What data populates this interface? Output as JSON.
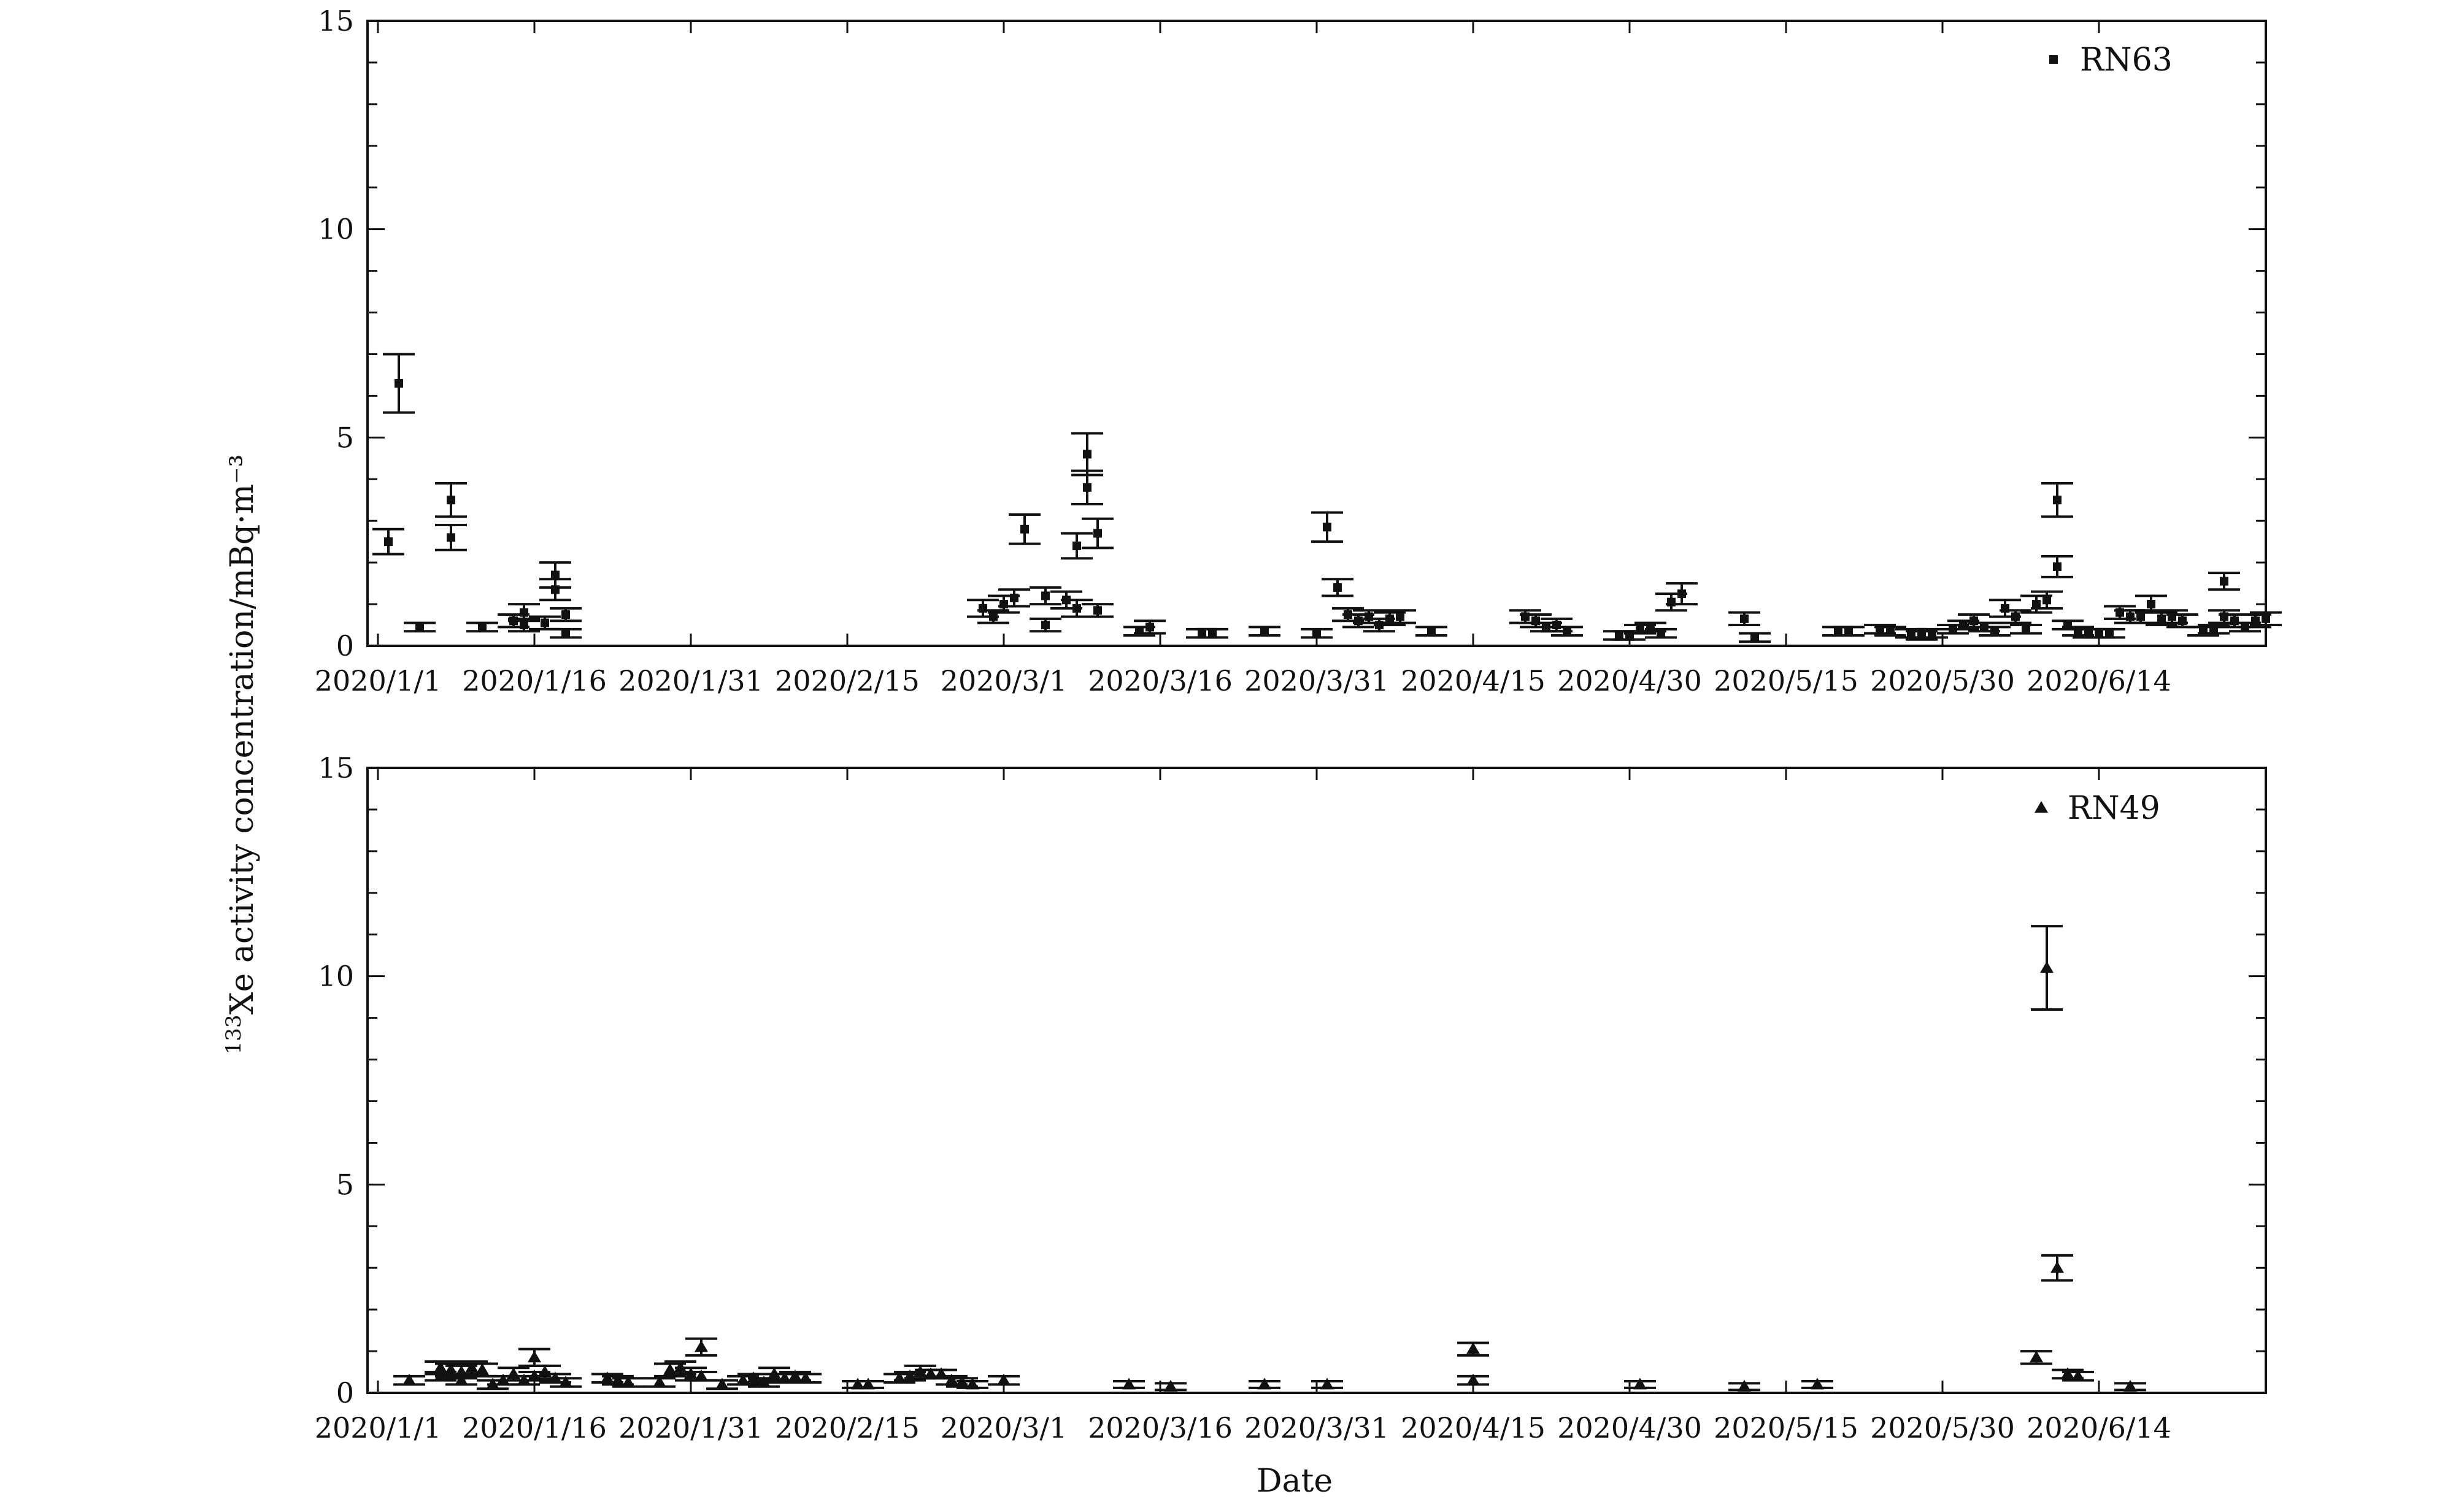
{
  "chart_data": [
    {
      "type": "scatter",
      "panel": "top",
      "legend": {
        "label": "RN63",
        "marker": "square",
        "placement": "top-right"
      },
      "xlabel": "",
      "ylabel_prefix": "133",
      "ylabel": "Xe activity concentration/mBq·m⁻³",
      "ylim": [
        0,
        15
      ],
      "y_ticks": [
        "0",
        "5",
        "10",
        "15"
      ],
      "x_ticks": [
        "2020/1/1",
        "2020/1/16",
        "2020/1/31",
        "2020/2/15",
        "2020/3/1",
        "2020/3/16",
        "2020/3/31",
        "2020/4/15",
        "2020/4/30",
        "2020/5/15",
        "2020/5/30",
        "2020/6/14"
      ],
      "xlim": [
        "2019/12/31",
        "2020/6/30"
      ],
      "series": [
        {
          "name": "RN63",
          "points": [
            {
              "date": "2020/1/2",
              "y": 2.5,
              "err": 0.3
            },
            {
              "date": "2020/1/3",
              "y": 6.3,
              "err": 0.7
            },
            {
              "date": "2020/1/5",
              "y": 0.45,
              "err": 0.1
            },
            {
              "date": "2020/1/8",
              "y": 2.6,
              "err": 0.3
            },
            {
              "date": "2020/1/8",
              "y": 3.5,
              "err": 0.4
            },
            {
              "date": "2020/1/11",
              "y": 0.45,
              "err": 0.1
            },
            {
              "date": "2020/1/14",
              "y": 0.6,
              "err": 0.15
            },
            {
              "date": "2020/1/15",
              "y": 0.8,
              "err": 0.2
            },
            {
              "date": "2020/1/15",
              "y": 0.5,
              "err": 0.15
            },
            {
              "date": "2020/1/17",
              "y": 0.55,
              "err": 0.15
            },
            {
              "date": "2020/1/18",
              "y": 1.35,
              "err": 0.25
            },
            {
              "date": "2020/1/18",
              "y": 1.7,
              "err": 0.3
            },
            {
              "date": "2020/1/19",
              "y": 0.75,
              "err": 0.15
            },
            {
              "date": "2020/1/19",
              "y": 0.3,
              "err": 0.1
            },
            {
              "date": "2020/2/28",
              "y": 0.9,
              "err": 0.2
            },
            {
              "date": "2020/2/29",
              "y": 0.7,
              "err": 0.15
            },
            {
              "date": "2020/3/1",
              "y": 1.0,
              "err": 0.2
            },
            {
              "date": "2020/3/2",
              "y": 1.15,
              "err": 0.2
            },
            {
              "date": "2020/3/3",
              "y": 2.8,
              "err": 0.35
            },
            {
              "date": "2020/3/5",
              "y": 1.2,
              "err": 0.2
            },
            {
              "date": "2020/3/5",
              "y": 0.5,
              "err": 0.15
            },
            {
              "date": "2020/3/7",
              "y": 1.1,
              "err": 0.2
            },
            {
              "date": "2020/3/8",
              "y": 0.9,
              "err": 0.2
            },
            {
              "date": "2020/3/8",
              "y": 2.4,
              "err": 0.3
            },
            {
              "date": "2020/3/9",
              "y": 4.6,
              "err": 0.5
            },
            {
              "date": "2020/3/9",
              "y": 3.8,
              "err": 0.4
            },
            {
              "date": "2020/3/10",
              "y": 0.85,
              "err": 0.15
            },
            {
              "date": "2020/3/10",
              "y": 2.7,
              "err": 0.35
            },
            {
              "date": "2020/3/14",
              "y": 0.35,
              "err": 0.1
            },
            {
              "date": "2020/3/15",
              "y": 0.45,
              "err": 0.15
            },
            {
              "date": "2020/3/20",
              "y": 0.3,
              "err": 0.1
            },
            {
              "date": "2020/3/21",
              "y": 0.3,
              "err": 0.1
            },
            {
              "date": "2020/3/26",
              "y": 0.35,
              "err": 0.1
            },
            {
              "date": "2020/3/31",
              "y": 0.3,
              "err": 0.1
            },
            {
              "date": "2020/4/1",
              "y": 2.85,
              "err": 0.35
            },
            {
              "date": "2020/4/2",
              "y": 1.4,
              "err": 0.2
            },
            {
              "date": "2020/4/3",
              "y": 0.75,
              "err": 0.15
            },
            {
              "date": "2020/4/4",
              "y": 0.6,
              "err": 0.15
            },
            {
              "date": "2020/4/5",
              "y": 0.7,
              "err": 0.15
            },
            {
              "date": "2020/4/6",
              "y": 0.5,
              "err": 0.15
            },
            {
              "date": "2020/4/7",
              "y": 0.65,
              "err": 0.15
            },
            {
              "date": "2020/4/8",
              "y": 0.7,
              "err": 0.15
            },
            {
              "date": "2020/4/11",
              "y": 0.35,
              "err": 0.1
            },
            {
              "date": "2020/4/20",
              "y": 0.7,
              "err": 0.15
            },
            {
              "date": "2020/4/21",
              "y": 0.6,
              "err": 0.15
            },
            {
              "date": "2020/4/22",
              "y": 0.45,
              "err": 0.1
            },
            {
              "date": "2020/4/23",
              "y": 0.5,
              "err": 0.15
            },
            {
              "date": "2020/4/24",
              "y": 0.35,
              "err": 0.1
            },
            {
              "date": "2020/4/29",
              "y": 0.25,
              "err": 0.1
            },
            {
              "date": "2020/4/30",
              "y": 0.25,
              "err": 0.1
            },
            {
              "date": "2020/5/1",
              "y": 0.4,
              "err": 0.1
            },
            {
              "date": "2020/5/2",
              "y": 0.45,
              "err": 0.1
            },
            {
              "date": "2020/5/3",
              "y": 0.3,
              "err": 0.1
            },
            {
              "date": "2020/5/4",
              "y": 1.05,
              "err": 0.2
            },
            {
              "date": "2020/5/5",
              "y": 1.25,
              "err": 0.25
            },
            {
              "date": "2020/5/11",
              "y": 0.65,
              "err": 0.15
            },
            {
              "date": "2020/5/12",
              "y": 0.2,
              "err": 0.1
            },
            {
              "date": "2020/5/20",
              "y": 0.35,
              "err": 0.1
            },
            {
              "date": "2020/5/21",
              "y": 0.35,
              "err": 0.1
            },
            {
              "date": "2020/5/24",
              "y": 0.4,
              "err": 0.1
            },
            {
              "date": "2020/5/25",
              "y": 0.35,
              "err": 0.1
            },
            {
              "date": "2020/5/27",
              "y": 0.3,
              "err": 0.1
            },
            {
              "date": "2020/5/28",
              "y": 0.25,
              "err": 0.1
            },
            {
              "date": "2020/5/29",
              "y": 0.3,
              "err": 0.1
            },
            {
              "date": "2020/5/31",
              "y": 0.4,
              "err": 0.1
            },
            {
              "date": "2020/6/1",
              "y": 0.5,
              "err": 0.1
            },
            {
              "date": "2020/6/2",
              "y": 0.6,
              "err": 0.15
            },
            {
              "date": "2020/6/3",
              "y": 0.45,
              "err": 0.1
            },
            {
              "date": "2020/6/4",
              "y": 0.35,
              "err": 0.1
            },
            {
              "date": "2020/6/5",
              "y": 0.9,
              "err": 0.2
            },
            {
              "date": "2020/6/6",
              "y": 0.7,
              "err": 0.15
            },
            {
              "date": "2020/6/7",
              "y": 0.4,
              "err": 0.1
            },
            {
              "date": "2020/6/8",
              "y": 1.0,
              "err": 0.2
            },
            {
              "date": "2020/6/9",
              "y": 1.1,
              "err": 0.2
            },
            {
              "date": "2020/6/10",
              "y": 3.5,
              "err": 0.4
            },
            {
              "date": "2020/6/10",
              "y": 1.9,
              "err": 0.25
            },
            {
              "date": "2020/6/11",
              "y": 0.5,
              "err": 0.1
            },
            {
              "date": "2020/6/12",
              "y": 0.35,
              "err": 0.1
            },
            {
              "date": "2020/6/13",
              "y": 0.3,
              "err": 0.1
            },
            {
              "date": "2020/6/14",
              "y": 0.3,
              "err": 0.1
            },
            {
              "date": "2020/6/15",
              "y": 0.3,
              "err": 0.1
            },
            {
              "date": "2020/6/16",
              "y": 0.8,
              "err": 0.15
            },
            {
              "date": "2020/6/17",
              "y": 0.7,
              "err": 0.15
            },
            {
              "date": "2020/6/18",
              "y": 0.7,
              "err": 0.15
            },
            {
              "date": "2020/6/19",
              "y": 1.0,
              "err": 0.2
            },
            {
              "date": "2020/6/20",
              "y": 0.65,
              "err": 0.15
            },
            {
              "date": "2020/6/21",
              "y": 0.7,
              "err": 0.15
            },
            {
              "date": "2020/6/22",
              "y": 0.6,
              "err": 0.15
            },
            {
              "date": "2020/6/24",
              "y": 0.35,
              "err": 0.1
            },
            {
              "date": "2020/6/25",
              "y": 0.4,
              "err": 0.1
            },
            {
              "date": "2020/6/26",
              "y": 0.7,
              "err": 0.15
            },
            {
              "date": "2020/6/26",
              "y": 1.55,
              "err": 0.2
            },
            {
              "date": "2020/6/27",
              "y": 0.6,
              "err": 0.15
            },
            {
              "date": "2020/6/28",
              "y": 0.45,
              "err": 0.1
            },
            {
              "date": "2020/6/29",
              "y": 0.6,
              "err": 0.15
            },
            {
              "date": "2020/6/30",
              "y": 0.65,
              "err": 0.15
            }
          ]
        }
      ]
    },
    {
      "type": "scatter",
      "panel": "bottom",
      "legend": {
        "label": "RN49",
        "marker": "triangle",
        "placement": "top-right"
      },
      "xlabel": "Date",
      "ylim": [
        0,
        15
      ],
      "y_ticks": [
        "0",
        "5",
        "10",
        "15"
      ],
      "x_ticks": [
        "2020/1/1",
        "2020/1/16",
        "2020/1/31",
        "2020/2/15",
        "2020/3/1",
        "2020/3/16",
        "2020/3/31",
        "2020/4/15",
        "2020/4/30",
        "2020/5/15",
        "2020/5/30",
        "2020/6/14"
      ],
      "xlim": [
        "2019/12/31",
        "2020/6/30"
      ],
      "series": [
        {
          "name": "RN49",
          "points": [
            {
              "date": "2020/1/4",
              "y": 0.3,
              "err": 0.1
            },
            {
              "date": "2020/1/7",
              "y": 0.6,
              "err": 0.15
            },
            {
              "date": "2020/1/7",
              "y": 0.4,
              "err": 0.1
            },
            {
              "date": "2020/1/8",
              "y": 0.55,
              "err": 0.15
            },
            {
              "date": "2020/1/9",
              "y": 0.5,
              "err": 0.15
            },
            {
              "date": "2020/1/9",
              "y": 0.3,
              "err": 0.1
            },
            {
              "date": "2020/1/10",
              "y": 0.6,
              "err": 0.15
            },
            {
              "date": "2020/1/11",
              "y": 0.55,
              "err": 0.15
            },
            {
              "date": "2020/1/12",
              "y": 0.2,
              "err": 0.1
            },
            {
              "date": "2020/1/13",
              "y": 0.3,
              "err": 0.1
            },
            {
              "date": "2020/1/14",
              "y": 0.45,
              "err": 0.15
            },
            {
              "date": "2020/1/15",
              "y": 0.3,
              "err": 0.1
            },
            {
              "date": "2020/1/16",
              "y": 0.85,
              "err": 0.2
            },
            {
              "date": "2020/1/16",
              "y": 0.4,
              "err": 0.1
            },
            {
              "date": "2020/1/17",
              "y": 0.5,
              "err": 0.15
            },
            {
              "date": "2020/1/18",
              "y": 0.35,
              "err": 0.1
            },
            {
              "date": "2020/1/19",
              "y": 0.25,
              "err": 0.1
            },
            {
              "date": "2020/1/23",
              "y": 0.35,
              "err": 0.1
            },
            {
              "date": "2020/1/24",
              "y": 0.3,
              "err": 0.1
            },
            {
              "date": "2020/1/25",
              "y": 0.25,
              "err": 0.1
            },
            {
              "date": "2020/1/28",
              "y": 0.25,
              "err": 0.1
            },
            {
              "date": "2020/1/29",
              "y": 0.55,
              "err": 0.15
            },
            {
              "date": "2020/1/30",
              "y": 0.6,
              "err": 0.15
            },
            {
              "date": "2020/1/31",
              "y": 0.45,
              "err": 0.15
            },
            {
              "date": "2020/2/1",
              "y": 1.1,
              "err": 0.2
            },
            {
              "date": "2020/2/1",
              "y": 0.4,
              "err": 0.1
            },
            {
              "date": "2020/2/3",
              "y": 0.2,
              "err": 0.1
            },
            {
              "date": "2020/2/5",
              "y": 0.3,
              "err": 0.1
            },
            {
              "date": "2020/2/6",
              "y": 0.35,
              "err": 0.1
            },
            {
              "date": "2020/2/7",
              "y": 0.25,
              "err": 0.1
            },
            {
              "date": "2020/2/8",
              "y": 0.45,
              "err": 0.15
            },
            {
              "date": "2020/2/9",
              "y": 0.35,
              "err": 0.1
            },
            {
              "date": "2020/2/10",
              "y": 0.4,
              "err": 0.1
            },
            {
              "date": "2020/2/11",
              "y": 0.35,
              "err": 0.1
            },
            {
              "date": "2020/2/16",
              "y": 0.2,
              "err": 0.08
            },
            {
              "date": "2020/2/17",
              "y": 0.2,
              "err": 0.08
            },
            {
              "date": "2020/2/20",
              "y": 0.35,
              "err": 0.1
            },
            {
              "date": "2020/2/21",
              "y": 0.4,
              "err": 0.1
            },
            {
              "date": "2020/2/22",
              "y": 0.5,
              "err": 0.15
            },
            {
              "date": "2020/2/23",
              "y": 0.45,
              "err": 0.1
            },
            {
              "date": "2020/2/24",
              "y": 0.45,
              "err": 0.1
            },
            {
              "date": "2020/2/25",
              "y": 0.3,
              "err": 0.1
            },
            {
              "date": "2020/2/26",
              "y": 0.25,
              "err": 0.1
            },
            {
              "date": "2020/2/27",
              "y": 0.2,
              "err": 0.08
            },
            {
              "date": "2020/3/1",
              "y": 0.3,
              "err": 0.1
            },
            {
              "date": "2020/3/13",
              "y": 0.2,
              "err": 0.08
            },
            {
              "date": "2020/3/17",
              "y": 0.15,
              "err": 0.08
            },
            {
              "date": "2020/3/26",
              "y": 0.2,
              "err": 0.08
            },
            {
              "date": "2020/4/1",
              "y": 0.2,
              "err": 0.08
            },
            {
              "date": "2020/4/15",
              "y": 0.3,
              "err": 0.1
            },
            {
              "date": "2020/4/15",
              "y": 1.05,
              "err": 0.15
            },
            {
              "date": "2020/5/1",
              "y": 0.2,
              "err": 0.08
            },
            {
              "date": "2020/5/11",
              "y": 0.15,
              "err": 0.08
            },
            {
              "date": "2020/5/18",
              "y": 0.2,
              "err": 0.08
            },
            {
              "date": "2020/6/8",
              "y": 0.85,
              "err": 0.15
            },
            {
              "date": "2020/6/9",
              "y": 10.2,
              "err": 1.0
            },
            {
              "date": "2020/6/10",
              "y": 3.0,
              "err": 0.3
            },
            {
              "date": "2020/6/11",
              "y": 0.45,
              "err": 0.1
            },
            {
              "date": "2020/6/12",
              "y": 0.4,
              "err": 0.1
            },
            {
              "date": "2020/6/17",
              "y": 0.15,
              "err": 0.08
            }
          ]
        }
      ]
    }
  ]
}
